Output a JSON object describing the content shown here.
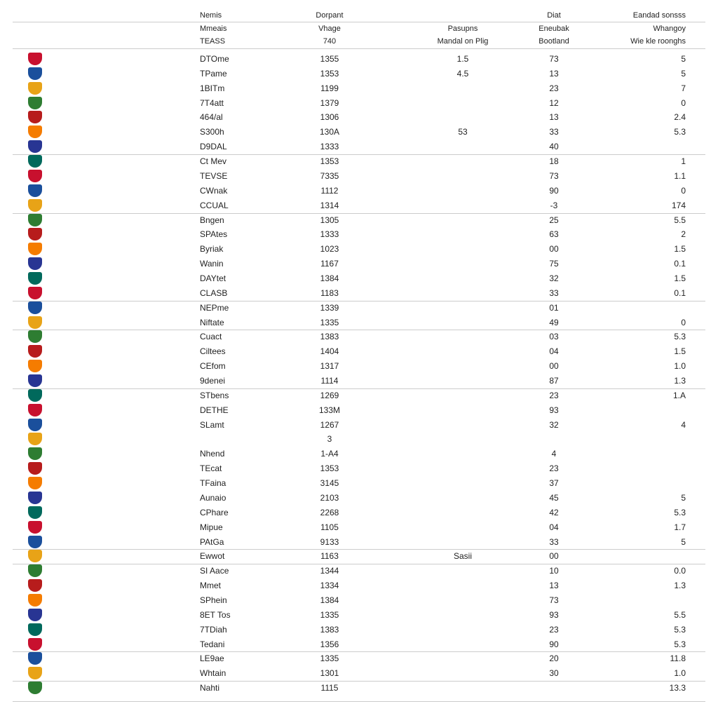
{
  "table": {
    "header": [
      [
        "Nemis",
        "Dorpant",
        null,
        "Diat",
        "Eandad sonsss"
      ],
      [
        "Mmeais",
        "Vhage",
        "Pasupns",
        "Eneubak",
        "Whangoy"
      ],
      [
        "TEASS",
        "740",
        "Mandal on Plig",
        "Bootland",
        "Wie kle roonghs"
      ]
    ],
    "rows": [
      [
        "DTOme",
        "1355",
        "1.5",
        "73",
        "5"
      ],
      [
        "TPame",
        "1353",
        "4.5",
        "13",
        "5"
      ],
      [
        "1BITm",
        "1199",
        null,
        "23",
        "7"
      ],
      [
        "7T4att",
        "1379",
        null,
        "12",
        "0"
      ],
      [
        "464/al",
        "1306",
        null,
        "13",
        "2.4"
      ],
      [
        "S300h",
        "130A",
        "53",
        "33",
        "5.3"
      ],
      [
        "D9DAL",
        "1333",
        null,
        "40",
        null
      ],
      [
        "Ct Mev",
        "1353",
        null,
        "18",
        "1"
      ],
      [
        "TEVSE",
        "7335",
        null,
        "73",
        "1.1"
      ],
      [
        "CWnak",
        "1112",
        null,
        "90",
        "0"
      ],
      [
        "CCUAL",
        "1314",
        null,
        "-3",
        "174"
      ],
      [
        "Bngen",
        "1305",
        null,
        "25",
        "5.5"
      ],
      [
        "SPAtes",
        "1333",
        null,
        "63",
        "2"
      ],
      [
        "Byriak",
        "1023",
        null,
        "00",
        "1.5"
      ],
      [
        "Wanin",
        "1167",
        null,
        "75",
        "0.1"
      ],
      [
        "DAYtet",
        "1384",
        null,
        "32",
        "1.5"
      ],
      [
        "CLASB",
        "1183",
        null,
        "33",
        "0.1"
      ],
      [
        "NEPme",
        "1339",
        null,
        "01",
        null
      ],
      [
        "Niftate",
        "1335",
        null,
        "49",
        "0"
      ],
      [
        "Cuact",
        "1383",
        null,
        "03",
        "5.3"
      ],
      [
        "Ciltees",
        "1404",
        null,
        "04",
        "1.5"
      ],
      [
        "CEfom",
        "1317",
        null,
        "00",
        "1.0"
      ],
      [
        "9denei",
        "1114",
        null,
        "87",
        "1.3"
      ],
      [
        "STbens",
        "1269",
        null,
        "23",
        "1.A"
      ],
      [
        "DETHE",
        "133M",
        null,
        "93",
        null
      ],
      [
        "SLamt",
        "1267",
        null,
        "32",
        "4"
      ],
      [
        null,
        "3",
        null,
        null,
        null
      ],
      [
        "Nhend",
        "1-A4",
        null,
        "4",
        null
      ],
      [
        "TEcat",
        "1353",
        null,
        "23",
        null
      ],
      [
        "TFaina",
        "3145",
        null,
        "37",
        null
      ],
      [
        "Aunaio",
        "2103",
        null,
        "45",
        "5"
      ],
      [
        "CPhare",
        "2268",
        null,
        "42",
        "5.3"
      ],
      [
        "Mipue",
        "1105",
        null,
        "04",
        "1.7"
      ],
      [
        "PAtGa",
        "9133",
        null,
        "33",
        "5"
      ],
      [
        "Ewwot",
        "1163",
        "Sasii",
        "00",
        null
      ],
      [
        "SI Aace",
        "1344",
        null,
        "10",
        "0.0"
      ],
      [
        "Mmet",
        "1334",
        null,
        "13",
        "1.3"
      ],
      [
        "SPhein",
        "1384",
        null,
        "73",
        null
      ],
      [
        "8ET Tos",
        "1335",
        null,
        "93",
        "5.5"
      ],
      [
        "7TDiah",
        "1383",
        null,
        "23",
        "5.3"
      ],
      [
        "Tedani",
        "1356",
        null,
        "90",
        "5.3"
      ],
      [
        "LE9ae",
        "1335",
        null,
        "20",
        "11.8"
      ],
      [
        "Whtain",
        "1301",
        null,
        "30",
        "1.0"
      ],
      [
        "Nahti",
        "1115",
        null,
        null,
        "13.3"
      ]
    ]
  }
}
